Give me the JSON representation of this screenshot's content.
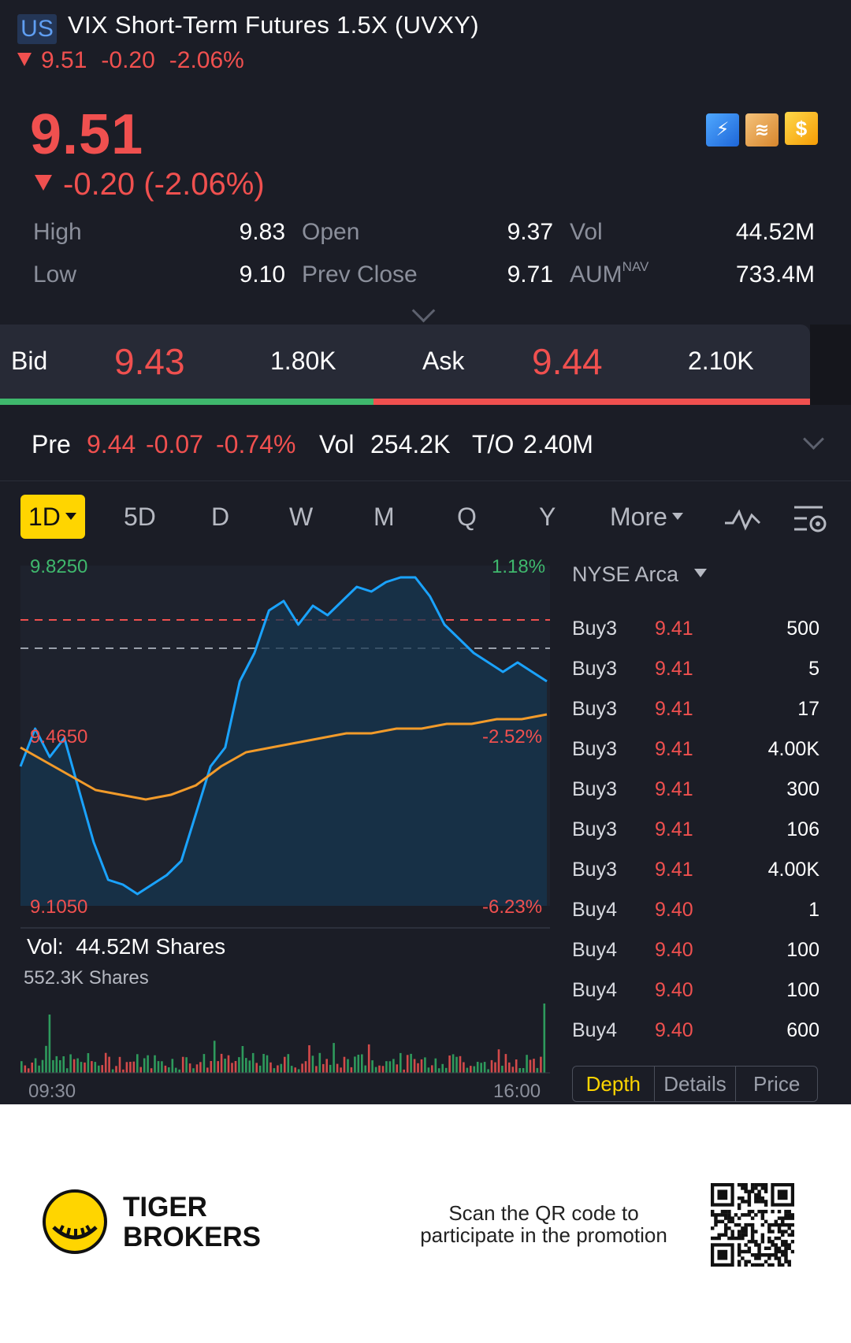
{
  "header": {
    "market": "US",
    "title": "VIX Short-Term Futures 1.5X  (UVXY)",
    "last": "9.51",
    "change": "-0.20",
    "change_pct": "-2.06%"
  },
  "quote": {
    "price": "9.51",
    "change_line": "-0.20 (-2.06%)",
    "badges": [
      "flash-icon",
      "layers-icon",
      "dollar-icon"
    ],
    "stats": {
      "high_label": "High",
      "high": "9.83",
      "low_label": "Low",
      "low": "9.10",
      "open_label": "Open",
      "open": "9.37",
      "prev_close_label": "Prev Close",
      "prev_close": "9.71",
      "vol_label": "Vol",
      "vol": "44.52M",
      "aum_label": "AUM",
      "aum_sup": "NAV",
      "aum": "733.4M"
    }
  },
  "bid_ask": {
    "bid_label": "Bid",
    "bid": "9.43",
    "bid_size": "1.80K",
    "ask_label": "Ask",
    "ask": "9.44",
    "ask_size": "2.10K"
  },
  "premarket": {
    "label": "Pre",
    "price": "9.44",
    "change": "-0.07",
    "change_pct": "-0.74%",
    "vol_label": "Vol",
    "vol": "254.2K",
    "to_label": "T/O",
    "to": "2.40M"
  },
  "period_tabs": {
    "active": "1D",
    "items": [
      "5D",
      "D",
      "W",
      "M",
      "Q",
      "Y"
    ],
    "more": "More"
  },
  "chart": {
    "high_price": "9.8250",
    "high_pct": "1.18%",
    "mid_price": "9.4650",
    "mid_pct": "-2.52%",
    "low_price": "9.1050",
    "low_pct": "-6.23%",
    "vol_label": "Vol:",
    "vol_value": "44.52M Shares",
    "vol_scale": "552.3K Shares",
    "time_start": "09:30",
    "time_end": "16:00",
    "colors": {
      "price": "#1aa3ff",
      "avg": "#f29b2a",
      "prev_close": "#f0504f"
    }
  },
  "chart_data": {
    "type": "line",
    "ylim": [
      9.105,
      9.825
    ],
    "x_range": [
      "09:30",
      "16:00"
    ],
    "reference_lines": {
      "prev_close": 9.71,
      "upper_dashed": 9.65
    },
    "series": [
      {
        "values": [
          9.4,
          9.48,
          9.42,
          9.46,
          9.35,
          9.24,
          9.16,
          9.15,
          9.13,
          9.15,
          9.17,
          9.2,
          9.3,
          9.4,
          9.44,
          9.58,
          9.64,
          9.73,
          9.75,
          9.7,
          9.74,
          9.72,
          9.75,
          9.78,
          9.77,
          9.79,
          9.8,
          9.8,
          9.76,
          9.7,
          9.67,
          9.64,
          9.62,
          9.6,
          9.62,
          9.6,
          9.58
        ]
      },
      {
        "values": [
          9.44,
          9.41,
          9.38,
          9.35,
          9.34,
          9.33,
          9.34,
          9.36,
          9.4,
          9.43,
          9.44,
          9.45,
          9.46,
          9.47,
          9.47,
          9.48,
          9.48,
          9.49,
          9.49,
          9.5,
          9.5,
          9.51
        ]
      }
    ]
  },
  "order_book": {
    "exchange": "NYSE Arca",
    "rows": [
      {
        "level": "Buy3",
        "price": "9.41",
        "size": "500"
      },
      {
        "level": "Buy3",
        "price": "9.41",
        "size": "5"
      },
      {
        "level": "Buy3",
        "price": "9.41",
        "size": "17"
      },
      {
        "level": "Buy3",
        "price": "9.41",
        "size": "4.00K"
      },
      {
        "level": "Buy3",
        "price": "9.41",
        "size": "300"
      },
      {
        "level": "Buy3",
        "price": "9.41",
        "size": "106"
      },
      {
        "level": "Buy3",
        "price": "9.41",
        "size": "4.00K"
      },
      {
        "level": "Buy4",
        "price": "9.40",
        "size": "1"
      },
      {
        "level": "Buy4",
        "price": "9.40",
        "size": "100"
      },
      {
        "level": "Buy4",
        "price": "9.40",
        "size": "100"
      },
      {
        "level": "Buy4",
        "price": "9.40",
        "size": "600"
      }
    ],
    "tabs": [
      "Depth",
      "Details",
      "Price"
    ]
  },
  "footer": {
    "brand_line1": "TIGER",
    "brand_line2": "BROKERS",
    "promo": "Scan the QR code to participate in the promotion"
  }
}
